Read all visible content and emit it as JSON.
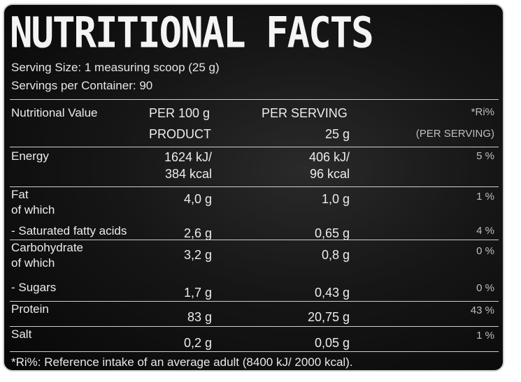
{
  "title": "NUTRITIONAL FACTS",
  "serving_size": "Serving Size: 1 measuring scoop (25 g)",
  "servings_per_container": "Servings per Container: 90",
  "header": {
    "col0": "Nutritional Value",
    "col1_line1": "PER 100 g",
    "col1_line2": "PRODUCT",
    "col2_line1": "PER SERVING",
    "col2_line2": "25 g",
    "col3_line1": "*Ri%",
    "col3_line2": "(PER SERVING)"
  },
  "rows": [
    {
      "labels": [
        "Energy"
      ],
      "per100": [
        "1624 kJ/",
        "384 kcal"
      ],
      "serving": [
        "406 kJ/",
        "96 kcal"
      ],
      "ri": "5 %"
    },
    {
      "labels": [
        "Fat",
        "of which"
      ],
      "per100": [
        "4,0 g"
      ],
      "serving": [
        "1,0 g"
      ],
      "ri": "1 %"
    },
    {
      "labels": [
        "- Saturated fatty acids"
      ],
      "per100": [
        "2,6 g"
      ],
      "serving": [
        "0,65 g"
      ],
      "ri": "4 %"
    },
    {
      "labels": [
        "Carbohydrate",
        "of which"
      ],
      "per100": [
        "3,2 g"
      ],
      "serving": [
        "0,8 g"
      ],
      "ri": "0 %"
    },
    {
      "labels": [
        "- Sugars"
      ],
      "per100": [
        "1,7 g"
      ],
      "serving": [
        "0,43 g"
      ],
      "ri": "0 %"
    },
    {
      "labels": [
        "Protein"
      ],
      "per100": [
        "83 g"
      ],
      "serving": [
        "20,75 g"
      ],
      "ri": "43 %"
    },
    {
      "labels": [
        "Salt"
      ],
      "per100": [
        "0,2 g"
      ],
      "serving": [
        "0,05 g"
      ],
      "ri": "1 %"
    }
  ],
  "footnote": "*Ri%: Reference intake of an average adult (8400 kJ/ 2000 kcal)."
}
